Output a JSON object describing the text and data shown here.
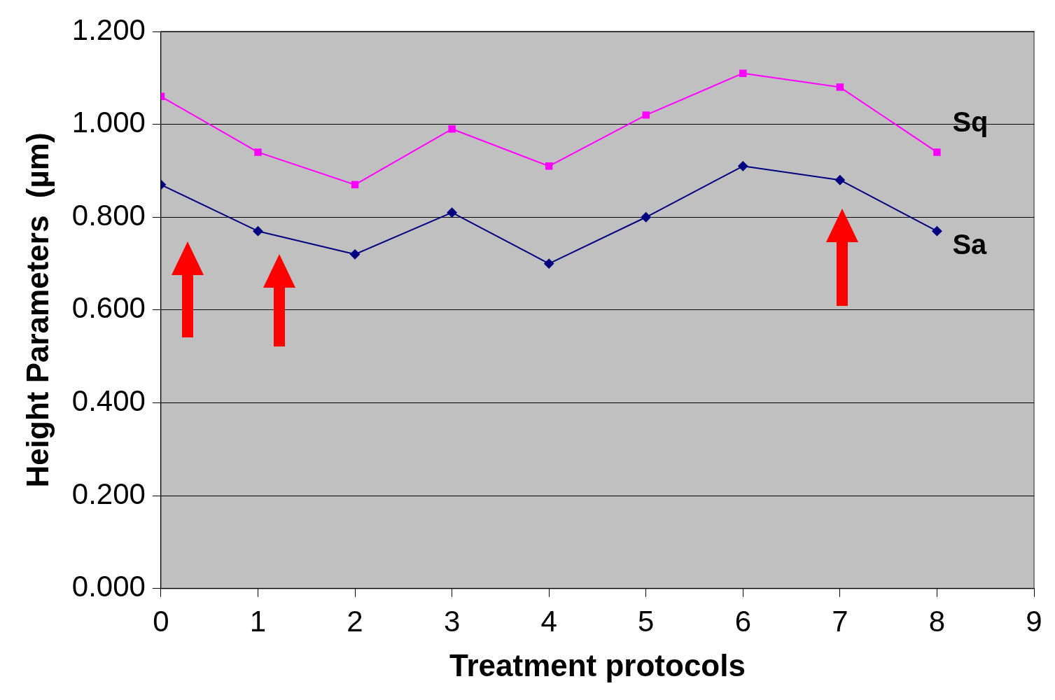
{
  "chart_data": {
    "type": "line",
    "xlabel": "Treatment protocols",
    "ylabel": "Height Parameters  (µm)",
    "x": [
      0,
      1,
      2,
      3,
      4,
      5,
      6,
      7,
      8
    ],
    "series": [
      {
        "name": "Sq",
        "color": "#ff00ff",
        "marker": "square",
        "values": [
          1.06,
          0.94,
          0.87,
          0.99,
          0.91,
          1.02,
          1.11,
          1.08,
          0.94
        ]
      },
      {
        "name": "Sa",
        "color": "#000080",
        "marker": "diamond",
        "values": [
          0.87,
          0.77,
          0.72,
          0.81,
          0.7,
          0.8,
          0.91,
          0.88,
          0.77
        ]
      }
    ],
    "xlim": [
      0,
      9
    ],
    "xticks": [
      0,
      1,
      2,
      3,
      4,
      5,
      6,
      7,
      8,
      9
    ],
    "ylim": [
      0,
      1.2
    ],
    "yticks": [
      {
        "value": 0,
        "label": "0.000"
      },
      {
        "value": 0.2,
        "label": "0.200"
      },
      {
        "value": 0.4,
        "label": "0.400"
      },
      {
        "value": 0.6,
        "label": "0.600"
      },
      {
        "value": 0.8,
        "label": "0.800"
      },
      {
        "value": 1,
        "label": "1.000"
      },
      {
        "value": 1.2,
        "label": "1.200"
      }
    ],
    "grid": "y",
    "legend": false,
    "line_style": "solid"
  }
}
